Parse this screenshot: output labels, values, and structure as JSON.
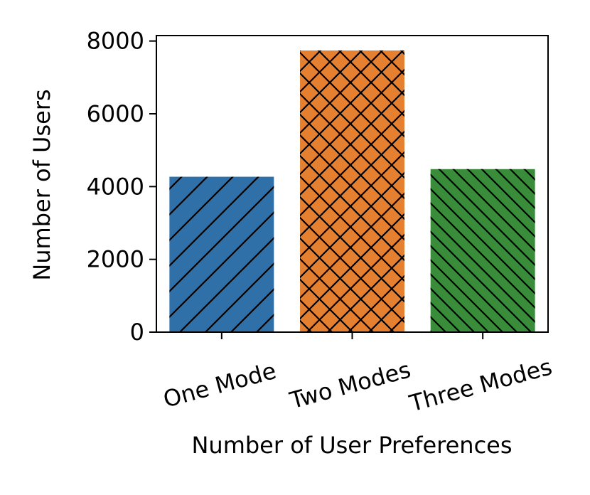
{
  "chart_data": {
    "type": "bar",
    "title": "",
    "xlabel": "Number of User Preferences",
    "ylabel": "Number of Users",
    "categories": [
      "One Mode",
      "Two Modes",
      "Three Modes"
    ],
    "values": [
      4270,
      7740,
      4480
    ],
    "bar_colors": [
      "#2f70a8",
      "#e4802f",
      "#398c3a"
    ],
    "hatch_patterns": [
      "forward-diagonal",
      "cross-diagonal",
      "backward-diagonal"
    ],
    "ylim": [
      0,
      8150
    ],
    "yticks": [
      0,
      2000,
      4000,
      6000,
      8000
    ],
    "ytick_labels": [
      "0",
      "2000",
      "4000",
      "6000",
      "8000"
    ],
    "grid": false,
    "legend": "none"
  }
}
